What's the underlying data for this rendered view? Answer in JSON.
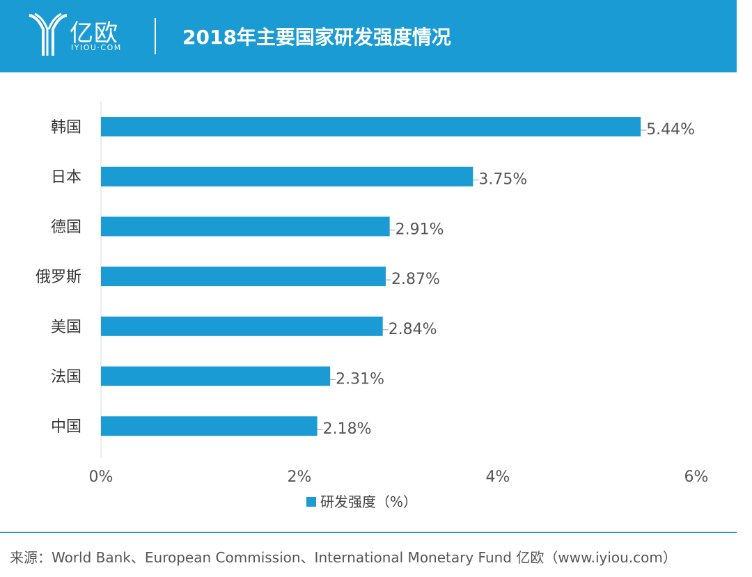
{
  "header": {
    "logo_cn": "亿欧",
    "logo_en": "IYIOU·COM",
    "title": "2018年主要国家研发强度情况"
  },
  "colors": {
    "accent": "#1b9bd3",
    "bar": "#1b9bd3",
    "text": "#333333"
  },
  "chart_data": {
    "type": "bar",
    "orientation": "horizontal",
    "categories": [
      "韩国",
      "日本",
      "德国",
      "俄罗斯",
      "美国",
      "法国",
      "中国"
    ],
    "values": [
      5.44,
      3.75,
      2.91,
      2.87,
      2.84,
      2.31,
      2.18
    ],
    "data_labels": [
      "5.44%",
      "3.75%",
      "2.91%",
      "2.87%",
      "2.84%",
      "2.31%",
      "2.18%"
    ],
    "xlim": [
      0,
      6
    ],
    "xticks": [
      0,
      2,
      4,
      6
    ],
    "xtick_labels": [
      "0%",
      "2%",
      "4%",
      "6%"
    ],
    "legend": {
      "label": "研发强度（%）",
      "position": "bottom"
    },
    "title": "2018年主要国家研发强度情况",
    "grid": false
  },
  "footer": {
    "source": "来源：World Bank、European Commission、International Monetary Fund   亿欧（www.iyiou.com）"
  }
}
